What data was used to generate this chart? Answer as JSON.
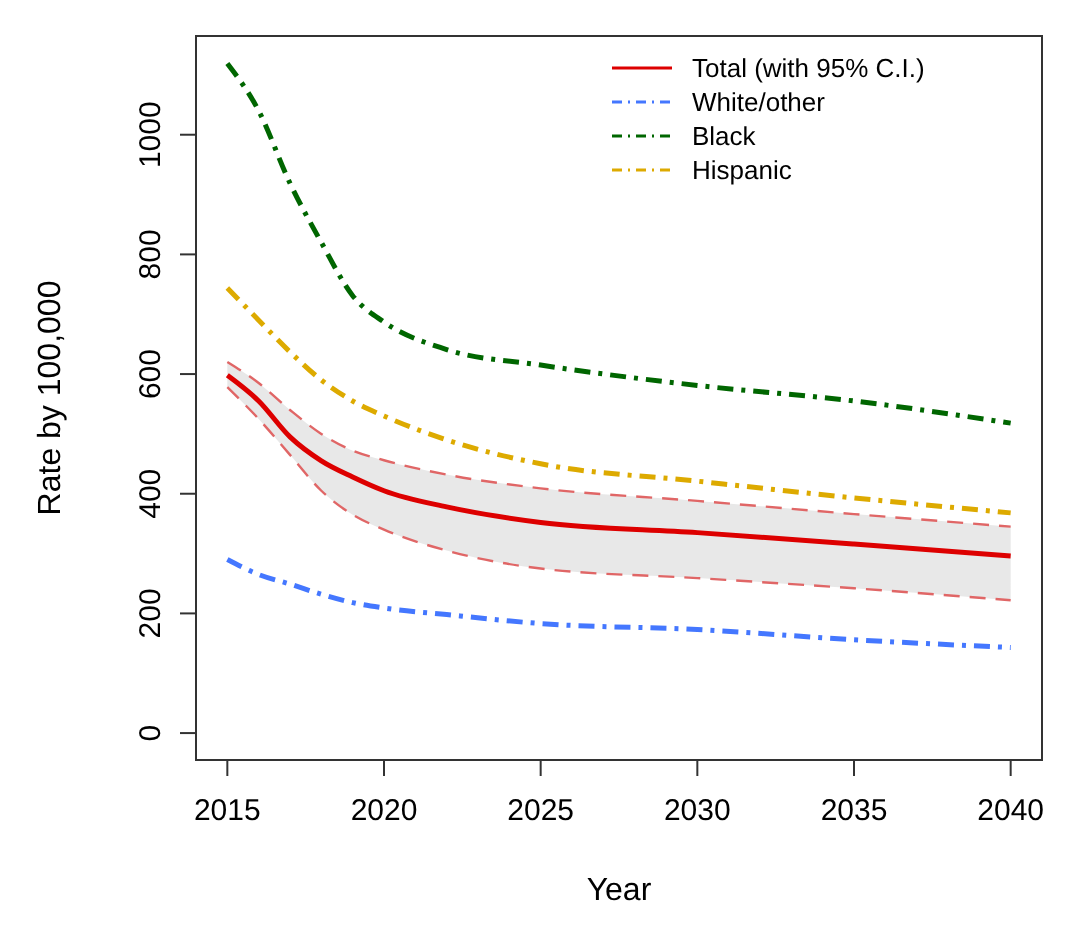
{
  "chart_data": {
    "type": "line",
    "xlabel": "Year",
    "ylabel": "Rate by 100,000",
    "xlim": [
      2014,
      2041
    ],
    "xticks": [
      2015,
      2020,
      2025,
      2030,
      2035,
      2040
    ],
    "ylim": [
      -45,
      1165
    ],
    "yticks": [
      0,
      200,
      400,
      600,
      800,
      1000
    ],
    "x": [
      2015,
      2016,
      2017,
      2018,
      2019,
      2020,
      2022,
      2025,
      2030,
      2035,
      2040
    ],
    "legend": "top right",
    "grid": false,
    "series": [
      {
        "name": "Total (with 95% C.I.)",
        "color": "#dd0000",
        "line_style": "solid",
        "values": [
          598,
          555,
          495,
          455,
          428,
          405,
          378,
          352,
          335,
          316,
          296
        ],
        "lower": [
          578,
          525,
          465,
          405,
          365,
          340,
          305,
          275,
          259,
          242,
          222
        ],
        "upper": [
          620,
          585,
          540,
          500,
          472,
          456,
          432,
          409,
          388,
          366,
          345
        ]
      },
      {
        "color": "#e06666",
        "line_style": "dashed",
        "values": [
          578,
          525,
          465,
          405,
          365,
          340,
          305,
          275,
          259,
          242,
          222
        ]
      },
      {
        "color": "#e06666",
        "line_style": "dashed",
        "values": [
          620,
          585,
          540,
          500,
          472,
          456,
          432,
          409,
          388,
          366,
          345
        ]
      },
      {
        "name": "White/other",
        "color": "#4477ff",
        "line_style": "dashdot",
        "values": [
          290,
          265,
          249,
          232,
          218,
          209,
          198,
          183,
          173,
          156,
          143
        ]
      },
      {
        "name": "Black",
        "color": "#006600",
        "line_style": "dashdot",
        "values": [
          1119,
          1040,
          919,
          820,
          731,
          687,
          641,
          615,
          581,
          555,
          518
        ]
      },
      {
        "name": "Hispanic",
        "color": "#ddaa00",
        "line_style": "dashdot",
        "values": [
          744,
          690,
          637,
          590,
          555,
          530,
          490,
          450,
          421,
          393,
          368
        ]
      }
    ]
  }
}
